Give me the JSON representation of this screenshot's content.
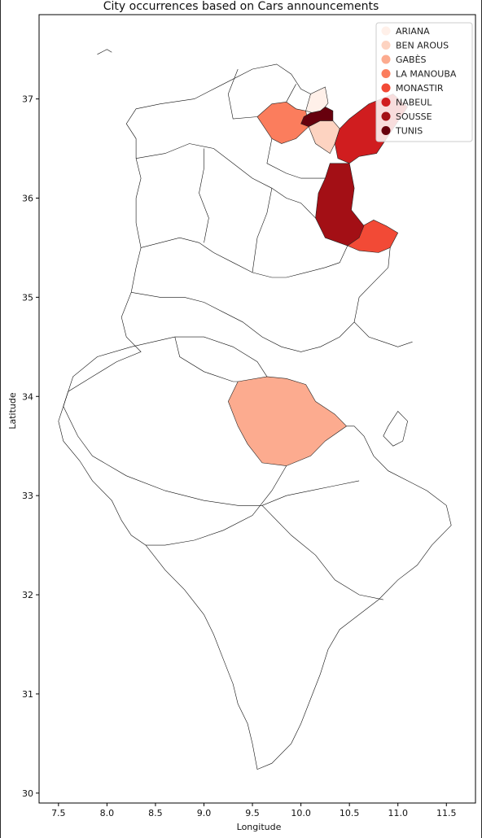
{
  "chart_data": {
    "type": "map",
    "title": "City occurrences based on Cars announcements",
    "xlabel": "Longitude",
    "ylabel": "Latitude",
    "xlim": [
      7.3,
      11.8
    ],
    "ylim": [
      29.9,
      37.85
    ],
    "x_ticks": [
      7.5,
      8.0,
      8.5,
      9.0,
      9.5,
      10.0,
      10.5,
      11.0,
      11.5
    ],
    "x_tick_labels": [
      "7.5",
      "8.0",
      "8.5",
      "9.0",
      "9.5",
      "10.0",
      "10.5",
      "11.0",
      "11.5"
    ],
    "y_ticks": [
      30,
      31,
      32,
      33,
      34,
      35,
      36,
      37
    ],
    "y_tick_labels": [
      "30",
      "31",
      "32",
      "33",
      "34",
      "35",
      "36",
      "37"
    ],
    "colormap": "Reds",
    "legend_position": "top-right",
    "legend": [
      {
        "name": "ARIANA",
        "color": "#fff0e9"
      },
      {
        "name": "BEN AROUS",
        "color": "#fdd3c1"
      },
      {
        "name": "GABÈS",
        "color": "#fcab8f"
      },
      {
        "name": "LA MANOUBA",
        "color": "#fb7d5d"
      },
      {
        "name": "MONASTIR",
        "color": "#f24a36"
      },
      {
        "name": "NABEUL",
        "color": "#d01d1f"
      },
      {
        "name": "SOUSSE",
        "color": "#a30f15"
      },
      {
        "name": "TUNIS",
        "color": "#67000d"
      }
    ],
    "regions": [
      {
        "name": "ARIANA",
        "color": "#fff0e9",
        "points": [
          [
            10.05,
            36.88
          ],
          [
            10.1,
            37.05
          ],
          [
            10.25,
            37.12
          ],
          [
            10.28,
            36.96
          ],
          [
            10.22,
            36.88
          ],
          [
            10.12,
            36.86
          ]
        ]
      },
      {
        "name": "BEN AROUS",
        "color": "#fdd3c1",
        "points": [
          [
            10.08,
            36.72
          ],
          [
            10.2,
            36.78
          ],
          [
            10.33,
            36.78
          ],
          [
            10.4,
            36.7
          ],
          [
            10.35,
            36.55
          ],
          [
            10.3,
            36.45
          ],
          [
            10.15,
            36.55
          ]
        ]
      },
      {
        "name": "GABÈS",
        "color": "#fcab8f",
        "points": [
          [
            9.35,
            34.15
          ],
          [
            9.65,
            34.2
          ],
          [
            9.85,
            34.18
          ],
          [
            10.05,
            34.12
          ],
          [
            10.15,
            33.95
          ],
          [
            10.35,
            33.82
          ],
          [
            10.47,
            33.7
          ],
          [
            10.25,
            33.55
          ],
          [
            10.1,
            33.4
          ],
          [
            9.85,
            33.3
          ],
          [
            9.6,
            33.33
          ],
          [
            9.45,
            33.52
          ],
          [
            9.35,
            33.7
          ],
          [
            9.25,
            33.95
          ]
        ]
      },
      {
        "name": "LA MANOUBA",
        "color": "#fb7d5d",
        "points": [
          [
            9.55,
            36.82
          ],
          [
            9.7,
            36.95
          ],
          [
            9.85,
            36.97
          ],
          [
            9.95,
            36.9
          ],
          [
            10.05,
            36.88
          ],
          [
            10.08,
            36.72
          ],
          [
            9.95,
            36.6
          ],
          [
            9.8,
            36.55
          ],
          [
            9.7,
            36.6
          ]
        ]
      },
      {
        "name": "MONASTIR",
        "color": "#f24a36",
        "points": [
          [
            10.48,
            35.52
          ],
          [
            10.6,
            35.7
          ],
          [
            10.75,
            35.78
          ],
          [
            10.88,
            35.72
          ],
          [
            11.0,
            35.65
          ],
          [
            10.92,
            35.5
          ],
          [
            10.8,
            35.45
          ],
          [
            10.6,
            35.47
          ]
        ]
      },
      {
        "name": "NABEUL",
        "color": "#d01d1f",
        "points": [
          [
            10.4,
            36.7
          ],
          [
            10.35,
            36.55
          ],
          [
            10.38,
            36.4
          ],
          [
            10.5,
            36.35
          ],
          [
            10.6,
            36.42
          ],
          [
            10.78,
            36.45
          ],
          [
            10.95,
            36.7
          ],
          [
            11.1,
            36.92
          ],
          [
            10.95,
            37.05
          ],
          [
            10.7,
            36.95
          ],
          [
            10.5,
            36.8
          ]
        ]
      },
      {
        "name": "SOUSSE",
        "color": "#a30f15",
        "points": [
          [
            10.3,
            36.35
          ],
          [
            10.5,
            36.35
          ],
          [
            10.55,
            36.1
          ],
          [
            10.52,
            35.88
          ],
          [
            10.65,
            35.72
          ],
          [
            10.6,
            35.6
          ],
          [
            10.48,
            35.52
          ],
          [
            10.25,
            35.6
          ],
          [
            10.15,
            35.8
          ],
          [
            10.18,
            36.05
          ],
          [
            10.25,
            36.2
          ]
        ]
      },
      {
        "name": "TUNIS",
        "color": "#67000d",
        "points": [
          [
            10.0,
            36.75
          ],
          [
            10.08,
            36.72
          ],
          [
            10.2,
            36.78
          ],
          [
            10.33,
            36.78
          ],
          [
            10.33,
            36.88
          ],
          [
            10.25,
            36.92
          ],
          [
            10.2,
            36.88
          ],
          [
            10.1,
            36.86
          ],
          [
            10.03,
            36.82
          ]
        ]
      }
    ],
    "boundaries": [
      [
        [
          9.65,
          34.2
        ],
        [
          9.55,
          34.35
        ],
        [
          9.3,
          34.5
        ],
        [
          9.0,
          34.6
        ],
        [
          8.7,
          34.6
        ],
        [
          8.25,
          34.5
        ],
        [
          7.9,
          34.4
        ],
        [
          7.65,
          34.2
        ],
        [
          7.55,
          33.9
        ],
        [
          7.7,
          33.6
        ],
        [
          7.85,
          33.4
        ],
        [
          8.2,
          33.2
        ],
        [
          8.6,
          33.05
        ],
        [
          9.0,
          32.95
        ],
        [
          9.35,
          32.9
        ],
        [
          9.6,
          32.9
        ],
        [
          9.85,
          33.0
        ],
        [
          10.1,
          33.05
        ],
        [
          10.35,
          33.1
        ],
        [
          10.6,
          33.15
        ]
      ],
      [
        [
          9.85,
          33.3
        ],
        [
          9.7,
          33.05
        ],
        [
          9.5,
          32.8
        ],
        [
          9.2,
          32.65
        ],
        [
          8.9,
          32.55
        ],
        [
          8.6,
          32.5
        ],
        [
          8.4,
          32.5
        ]
      ],
      [
        [
          7.55,
          33.9
        ],
        [
          7.5,
          33.75
        ],
        [
          7.55,
          33.55
        ],
        [
          7.72,
          33.35
        ],
        [
          7.85,
          33.15
        ],
        [
          8.05,
          32.95
        ],
        [
          8.15,
          32.75
        ],
        [
          8.25,
          32.6
        ],
        [
          8.4,
          32.5
        ],
        [
          8.6,
          32.25
        ],
        [
          8.8,
          32.05
        ],
        [
          9.0,
          31.8
        ],
        [
          9.1,
          31.6
        ],
        [
          9.2,
          31.35
        ],
        [
          9.3,
          31.1
        ],
        [
          9.35,
          30.9
        ],
        [
          9.45,
          30.7
        ],
        [
          9.5,
          30.5
        ],
        [
          9.55,
          30.24
        ],
        [
          9.7,
          30.3
        ],
        [
          9.9,
          30.5
        ],
        [
          10.0,
          30.7
        ],
        [
          10.1,
          30.95
        ],
        [
          10.2,
          31.2
        ],
        [
          10.28,
          31.45
        ],
        [
          10.4,
          31.65
        ],
        [
          10.6,
          31.8
        ],
        [
          10.8,
          31.95
        ],
        [
          11.0,
          32.15
        ],
        [
          11.2,
          32.3
        ],
        [
          11.35,
          32.5
        ],
        [
          11.55,
          32.7
        ],
        [
          11.5,
          32.9
        ],
        [
          11.3,
          33.05
        ],
        [
          11.1,
          33.15
        ],
        [
          10.9,
          33.25
        ],
        [
          10.75,
          33.4
        ],
        [
          10.65,
          33.6
        ],
        [
          10.55,
          33.7
        ],
        [
          10.47,
          33.7
        ]
      ],
      [
        [
          7.55,
          33.9
        ],
        [
          7.6,
          34.05
        ],
        [
          7.85,
          34.2
        ],
        [
          8.1,
          34.35
        ],
        [
          8.35,
          34.45
        ],
        [
          8.2,
          34.6
        ],
        [
          8.15,
          34.8
        ],
        [
          8.25,
          35.05
        ],
        [
          8.3,
          35.3
        ],
        [
          8.35,
          35.5
        ],
        [
          8.3,
          35.75
        ],
        [
          8.3,
          36.0
        ],
        [
          8.35,
          36.2
        ],
        [
          8.3,
          36.4
        ],
        [
          8.3,
          36.6
        ],
        [
          8.2,
          36.75
        ],
        [
          8.3,
          36.9
        ],
        [
          8.55,
          36.95
        ],
        [
          8.9,
          37.0
        ],
        [
          9.2,
          37.15
        ],
        [
          9.5,
          37.3
        ],
        [
          9.75,
          37.35
        ],
        [
          9.9,
          37.25
        ],
        [
          10.0,
          37.1
        ],
        [
          10.1,
          37.05
        ]
      ],
      [
        [
          8.3,
          36.4
        ],
        [
          8.6,
          36.45
        ],
        [
          8.85,
          36.55
        ],
        [
          9.1,
          36.5
        ],
        [
          9.3,
          36.35
        ],
        [
          9.5,
          36.2
        ],
        [
          9.7,
          36.1
        ],
        [
          9.85,
          36.0
        ],
        [
          10.0,
          35.95
        ],
        [
          10.15,
          35.8
        ]
      ],
      [
        [
          8.35,
          35.5
        ],
        [
          8.55,
          35.55
        ],
        [
          8.75,
          35.6
        ],
        [
          8.95,
          35.55
        ],
        [
          9.1,
          35.45
        ],
        [
          9.3,
          35.35
        ],
        [
          9.5,
          35.25
        ],
        [
          9.7,
          35.2
        ],
        [
          9.85,
          35.2
        ],
        [
          10.05,
          35.25
        ],
        [
          10.25,
          35.3
        ],
        [
          10.4,
          35.35
        ],
        [
          10.48,
          35.52
        ]
      ],
      [
        [
          8.25,
          35.05
        ],
        [
          8.55,
          35.0
        ],
        [
          8.8,
          35.0
        ],
        [
          9.0,
          34.95
        ],
        [
          9.2,
          34.85
        ],
        [
          9.4,
          34.75
        ],
        [
          9.6,
          34.6
        ],
        [
          9.8,
          34.5
        ],
        [
          10.0,
          34.45
        ],
        [
          10.2,
          34.5
        ],
        [
          10.4,
          34.6
        ],
        [
          10.55,
          34.75
        ],
        [
          10.6,
          35.0
        ],
        [
          10.75,
          35.15
        ],
        [
          10.9,
          35.3
        ],
        [
          10.92,
          35.5
        ]
      ],
      [
        [
          9.0,
          36.5
        ],
        [
          9.0,
          36.3
        ],
        [
          8.95,
          36.05
        ],
        [
          9.05,
          35.8
        ],
        [
          9.0,
          35.55
        ]
      ],
      [
        [
          9.7,
          36.1
        ],
        [
          9.65,
          35.85
        ],
        [
          9.55,
          35.6
        ],
        [
          9.5,
          35.25
        ]
      ],
      [
        [
          9.35,
          37.3
        ],
        [
          9.25,
          37.05
        ],
        [
          9.3,
          36.8
        ],
        [
          9.55,
          36.82
        ]
      ],
      [
        [
          9.85,
          36.97
        ],
        [
          9.95,
          37.15
        ]
      ],
      [
        [
          9.7,
          36.6
        ],
        [
          9.65,
          36.35
        ],
        [
          9.85,
          36.25
        ],
        [
          10.0,
          36.2
        ],
        [
          10.25,
          36.2
        ]
      ],
      [
        [
          8.7,
          34.6
        ],
        [
          8.75,
          34.4
        ],
        [
          9.0,
          34.25
        ],
        [
          9.3,
          34.15
        ],
        [
          9.35,
          34.15
        ]
      ],
      [
        [
          9.6,
          32.9
        ],
        [
          9.9,
          32.6
        ],
        [
          10.15,
          32.4
        ],
        [
          10.35,
          32.15
        ],
        [
          10.6,
          32.0
        ],
        [
          10.85,
          31.95
        ]
      ],
      [
        [
          10.55,
          34.75
        ],
        [
          10.7,
          34.6
        ],
        [
          10.85,
          34.55
        ],
        [
          11.0,
          34.5
        ],
        [
          11.15,
          34.55
        ]
      ],
      [
        [
          10.9,
          33.7
        ],
        [
          11.0,
          33.85
        ],
        [
          11.1,
          33.75
        ],
        [
          11.05,
          33.55
        ],
        [
          10.95,
          33.5
        ],
        [
          10.85,
          33.6
        ],
        [
          10.9,
          33.7
        ]
      ],
      [
        [
          7.9,
          37.45
        ],
        [
          8.0,
          37.5
        ],
        [
          8.05,
          37.47
        ]
      ]
    ]
  }
}
